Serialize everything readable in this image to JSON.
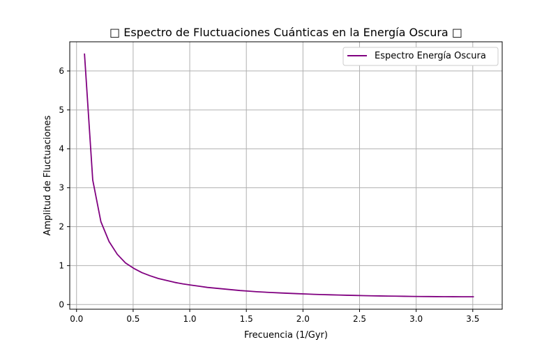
{
  "chart_data": {
    "type": "line",
    "title": "□ Espectro de Fluctuaciones Cuánticas en la Energía Oscura □",
    "xlabel": "Frecuencia (1/Gyr)",
    "ylabel": "Amplitud de Fluctuaciones",
    "xlim": [
      -0.06,
      3.76
    ],
    "ylim": [
      -0.12,
      6.75
    ],
    "xticks": [
      0.0,
      0.5,
      1.0,
      1.5,
      2.0,
      2.5,
      3.0,
      3.5
    ],
    "xtick_labels": [
      "0.0",
      "0.5",
      "1.0",
      "1.5",
      "2.0",
      "2.5",
      "3.0",
      "3.5"
    ],
    "yticks": [
      0,
      1,
      2,
      3,
      4,
      5,
      6
    ],
    "ytick_labels": [
      "0",
      "1",
      "2",
      "3",
      "4",
      "5",
      "6"
    ],
    "grid": true,
    "legend_position": "top-right",
    "series": [
      {
        "name": "Espectro Energía Oscura",
        "color": "#800080",
        "x": [
          0.07,
          0.143,
          0.215,
          0.287,
          0.36,
          0.432,
          0.505,
          0.577,
          0.649,
          0.722,
          0.794,
          0.866,
          0.939,
          1.011,
          1.084,
          1.156,
          1.228,
          1.301,
          1.373,
          1.445,
          1.518,
          1.59,
          1.663,
          1.735,
          1.807,
          1.88,
          1.952,
          2.024,
          2.097,
          2.169,
          2.242,
          2.314,
          2.386,
          2.459,
          2.531,
          2.603,
          2.676,
          2.748,
          2.821,
          2.893,
          2.965,
          3.038,
          3.11,
          3.182,
          3.255,
          3.327,
          3.4,
          3.472,
          3.51
        ],
        "values": [
          6.45,
          3.2,
          2.13,
          1.62,
          1.29,
          1.07,
          0.93,
          0.82,
          0.74,
          0.67,
          0.62,
          0.57,
          0.53,
          0.5,
          0.47,
          0.44,
          0.42,
          0.4,
          0.38,
          0.36,
          0.345,
          0.33,
          0.318,
          0.307,
          0.297,
          0.288,
          0.279,
          0.271,
          0.263,
          0.256,
          0.25,
          0.244,
          0.239,
          0.234,
          0.229,
          0.225,
          0.221,
          0.218,
          0.215,
          0.212,
          0.209,
          0.207,
          0.205,
          0.203,
          0.202,
          0.201,
          0.2,
          0.2,
          0.2
        ]
      }
    ]
  }
}
